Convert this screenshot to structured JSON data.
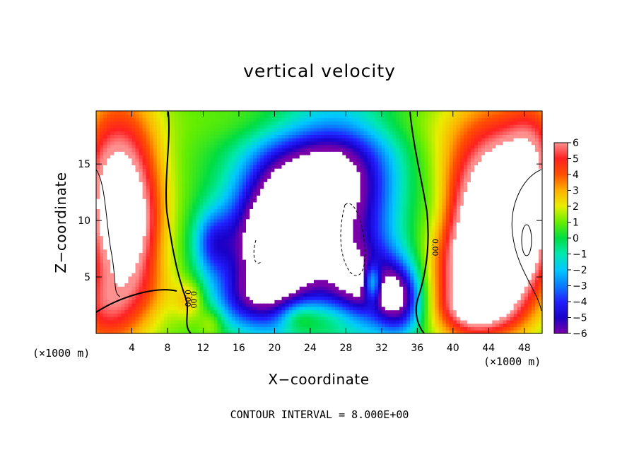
{
  "chart_data": {
    "type": "heatmap",
    "title": "vertical velocity",
    "xlabel": "X−coordinate",
    "ylabel": "Z−coordinate",
    "x_unit": "(×1000 m)",
    "y_unit": "(×1000 m)",
    "x_ticks": [
      "4",
      "8",
      "12",
      "16",
      "20",
      "24",
      "28",
      "32",
      "36",
      "40",
      "44",
      "48"
    ],
    "y_ticks": [
      "5",
      "10",
      "15"
    ],
    "xlim": [
      0,
      50
    ],
    "ylim": [
      0,
      19.7
    ],
    "colorbar_ticks": [
      "6",
      "5",
      "4",
      "3",
      "2",
      "1",
      "0",
      "−1",
      "−2",
      "−3",
      "−4",
      "−5",
      "−6"
    ],
    "colorbar_range": [
      -6,
      6
    ],
    "contour_values": [
      "0.00",
      "0.00",
      "0.00"
    ],
    "footer": "CONTOUR INTERVAL = 8.000E+00",
    "grid": false,
    "field_blobs": [
      {
        "x": 2.5,
        "z": 12,
        "sx": 3.2,
        "sz": 6,
        "a": 7
      },
      {
        "x": 4,
        "z": 9,
        "sx": 2,
        "sz": 3,
        "a": 2
      },
      {
        "x": 1,
        "z": 2,
        "sx": 3,
        "sz": 2.5,
        "a": 3
      },
      {
        "x": 6,
        "z": 4,
        "sx": 2.5,
        "sz": 2,
        "a": 1
      },
      {
        "x": 10.5,
        "z": 3,
        "sx": 1.2,
        "sz": 1.2,
        "a": 2
      },
      {
        "x": 13,
        "z": 1,
        "sx": 1,
        "sz": 1,
        "a": 1.5
      },
      {
        "x": 45,
        "z": 12,
        "sx": 4.5,
        "sz": 5.5,
        "a": 7
      },
      {
        "x": 47,
        "z": 8,
        "sx": 2.5,
        "sz": 4,
        "a": 5
      },
      {
        "x": 42,
        "z": 5,
        "sx": 3,
        "sz": 3.5,
        "a": 5
      },
      {
        "x": 43,
        "z": 2,
        "sx": 3,
        "sz": 1.5,
        "a": 3
      },
      {
        "x": 49,
        "z": 17,
        "sx": 2,
        "sz": 3,
        "a": 2
      },
      {
        "x": 38,
        "z": 11,
        "sx": 1.5,
        "sz": 3,
        "a": -1
      },
      {
        "x": 17.5,
        "z": 8,
        "sx": 3.5,
        "sz": 3,
        "a": -4.5
      },
      {
        "x": 21,
        "z": 6,
        "sx": 3,
        "sz": 4,
        "a": -5
      },
      {
        "x": 27,
        "z": 11,
        "sx": 4.5,
        "sz": 6,
        "a": -7
      },
      {
        "x": 30,
        "z": 4,
        "sx": 3,
        "sz": 2.5,
        "a": -5
      },
      {
        "x": 34,
        "z": 3,
        "sx": 1.8,
        "sz": 2.2,
        "a": -5.5
      },
      {
        "x": 24,
        "z": 15,
        "sx": 6,
        "sz": 3,
        "a": -3
      },
      {
        "x": 17,
        "z": 3,
        "sx": 3,
        "sz": 2,
        "a": -4
      },
      {
        "x": 13,
        "z": 8,
        "sx": 1.5,
        "sz": 2,
        "a": -3
      },
      {
        "x": 20,
        "z": 12,
        "sx": 3,
        "sz": 3,
        "a": -3
      },
      {
        "x": 26,
        "z": 1.5,
        "sx": 3,
        "sz": 1.2,
        "a": 2
      },
      {
        "x": 22.5,
        "z": 1.5,
        "sx": 1.5,
        "sz": 1,
        "a": 2
      },
      {
        "x": 31,
        "z": 4.5,
        "sx": 0.7,
        "sz": 1.2,
        "a": 5
      },
      {
        "x": 25,
        "z": 18.5,
        "sx": 8,
        "sz": 1.5,
        "a": 1
      }
    ],
    "background_value": 0.8
  }
}
